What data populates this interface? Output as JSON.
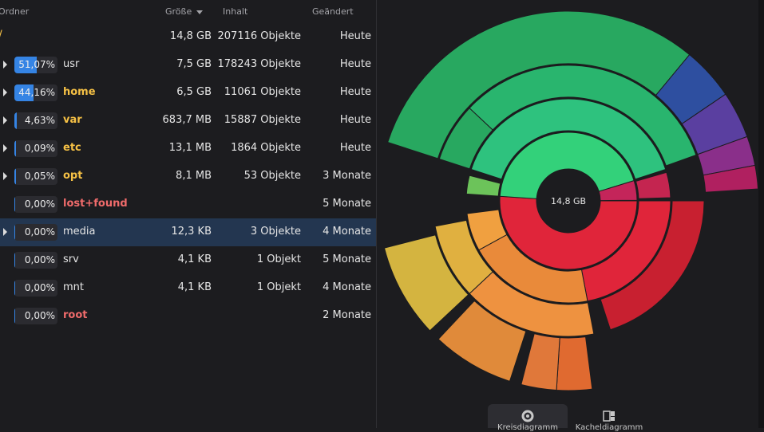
{
  "columns": {
    "folder": "Ordner",
    "size": "Größe",
    "content": "Inhalt",
    "modified": "Geändert"
  },
  "root": {
    "name": "/",
    "size": "14,8 GB",
    "content": "207116 Objekte",
    "modified": "Heute"
  },
  "rows": [
    {
      "percent": "51,07%",
      "fraction": 0.5107,
      "name": "usr",
      "style": "plain",
      "size": "7,5 GB",
      "content": "178243 Objekte",
      "modified": "Heute",
      "expandable": true
    },
    {
      "percent": "44,16%",
      "fraction": 0.4416,
      "name": "home",
      "style": "yellow",
      "size": "6,5 GB",
      "content": "11061 Objekte",
      "modified": "Heute",
      "expandable": true
    },
    {
      "percent": "4,63%",
      "fraction": 0.0463,
      "name": "var",
      "style": "yellow",
      "size": "683,7 MB",
      "content": "15887 Objekte",
      "modified": "Heute",
      "expandable": true
    },
    {
      "percent": "0,09%",
      "fraction": 0.0009,
      "name": "etc",
      "style": "yellow",
      "size": "13,1 MB",
      "content": "1864 Objekte",
      "modified": "Heute",
      "expandable": true
    },
    {
      "percent": "0,05%",
      "fraction": 0.0005,
      "name": "opt",
      "style": "yellow",
      "size": "8,1 MB",
      "content": "53 Objekte",
      "modified": "3 Monate",
      "expandable": true
    },
    {
      "percent": "0,00%",
      "fraction": 0.0,
      "name": "lost+found",
      "style": "red",
      "size": "",
      "content": "",
      "modified": "5 Monate",
      "expandable": false
    },
    {
      "percent": "0,00%",
      "fraction": 0.0,
      "name": "media",
      "style": "plain",
      "size": "12,3 KB",
      "content": "3 Objekte",
      "modified": "4 Monate",
      "expandable": true,
      "selected": true
    },
    {
      "percent": "0,00%",
      "fraction": 0.0,
      "name": "srv",
      "style": "plain",
      "size": "4,1 KB",
      "content": "1 Objekt",
      "modified": "5 Monate",
      "expandable": false
    },
    {
      "percent": "0,00%",
      "fraction": 0.0,
      "name": "mnt",
      "style": "plain",
      "size": "4,1 KB",
      "content": "1 Objekt",
      "modified": "4 Monate",
      "expandable": false
    },
    {
      "percent": "0,00%",
      "fraction": 0.0,
      "name": "root",
      "style": "red",
      "size": "",
      "content": "",
      "modified": "2 Monate",
      "expandable": false
    }
  ],
  "chart": {
    "center_label": "14,8 GB",
    "rings": [
      {
        "segments": [
          {
            "start": 0,
            "end": 0.5107,
            "color": "#e0253a"
          },
          {
            "start": 0.5107,
            "end": 0.9523,
            "color": "#33d17a"
          },
          {
            "start": 0.9523,
            "end": 0.9986,
            "color": "#c4255a"
          }
        ]
      },
      {
        "segments": [
          {
            "start": 0,
            "end": 0.22,
            "color": "#e0253a"
          },
          {
            "start": 0.22,
            "end": 0.42,
            "color": "#e98a3a"
          },
          {
            "start": 0.42,
            "end": 0.48,
            "color": "#f0a040"
          },
          {
            "start": 0.5107,
            "end": 0.54,
            "color": "#6cc35a"
          },
          {
            "start": 0.55,
            "end": 0.95,
            "color": "#2ec27e"
          },
          {
            "start": 0.955,
            "end": 0.995,
            "color": "#c42550"
          }
        ]
      },
      {
        "segments": [
          {
            "start": 0,
            "end": 0.2,
            "color": "#c82030"
          },
          {
            "start": 0.22,
            "end": 0.38,
            "color": "#ee9240"
          },
          {
            "start": 0.38,
            "end": 0.47,
            "color": "#e0b040"
          },
          {
            "start": 0.55,
            "end": 0.62,
            "color": "#28a860"
          },
          {
            "start": 0.62,
            "end": 0.945,
            "color": "#29b56e"
          }
        ]
      },
      {
        "segments": [
          {
            "start": 0.23,
            "end": 0.26,
            "color": "#e06a30"
          },
          {
            "start": 0.26,
            "end": 0.29,
            "color": "#e0783a"
          },
          {
            "start": 0.3,
            "end": 0.37,
            "color": "#e08a3a"
          },
          {
            "start": 0.38,
            "end": 0.46,
            "color": "#d4b440"
          },
          {
            "start": 0.55,
            "end": 0.86,
            "color": "#28a860"
          },
          {
            "start": 0.86,
            "end": 0.905,
            "color": "#2e4fa0"
          },
          {
            "start": 0.905,
            "end": 0.945,
            "color": "#5a3fa0"
          },
          {
            "start": 0.945,
            "end": 0.97,
            "color": "#8a2f8a"
          },
          {
            "start": 0.97,
            "end": 0.99,
            "color": "#b02060"
          }
        ]
      }
    ],
    "colors": {
      "background": "#1c1c1f",
      "accent": "#3584e4",
      "selected_row": "#233650"
    }
  },
  "view_switch": [
    {
      "label": "Kreisdiagramm",
      "icon": "ring-chart-icon",
      "active": true
    },
    {
      "label": "Kacheldiagramm",
      "icon": "treemap-icon",
      "active": false
    }
  ]
}
